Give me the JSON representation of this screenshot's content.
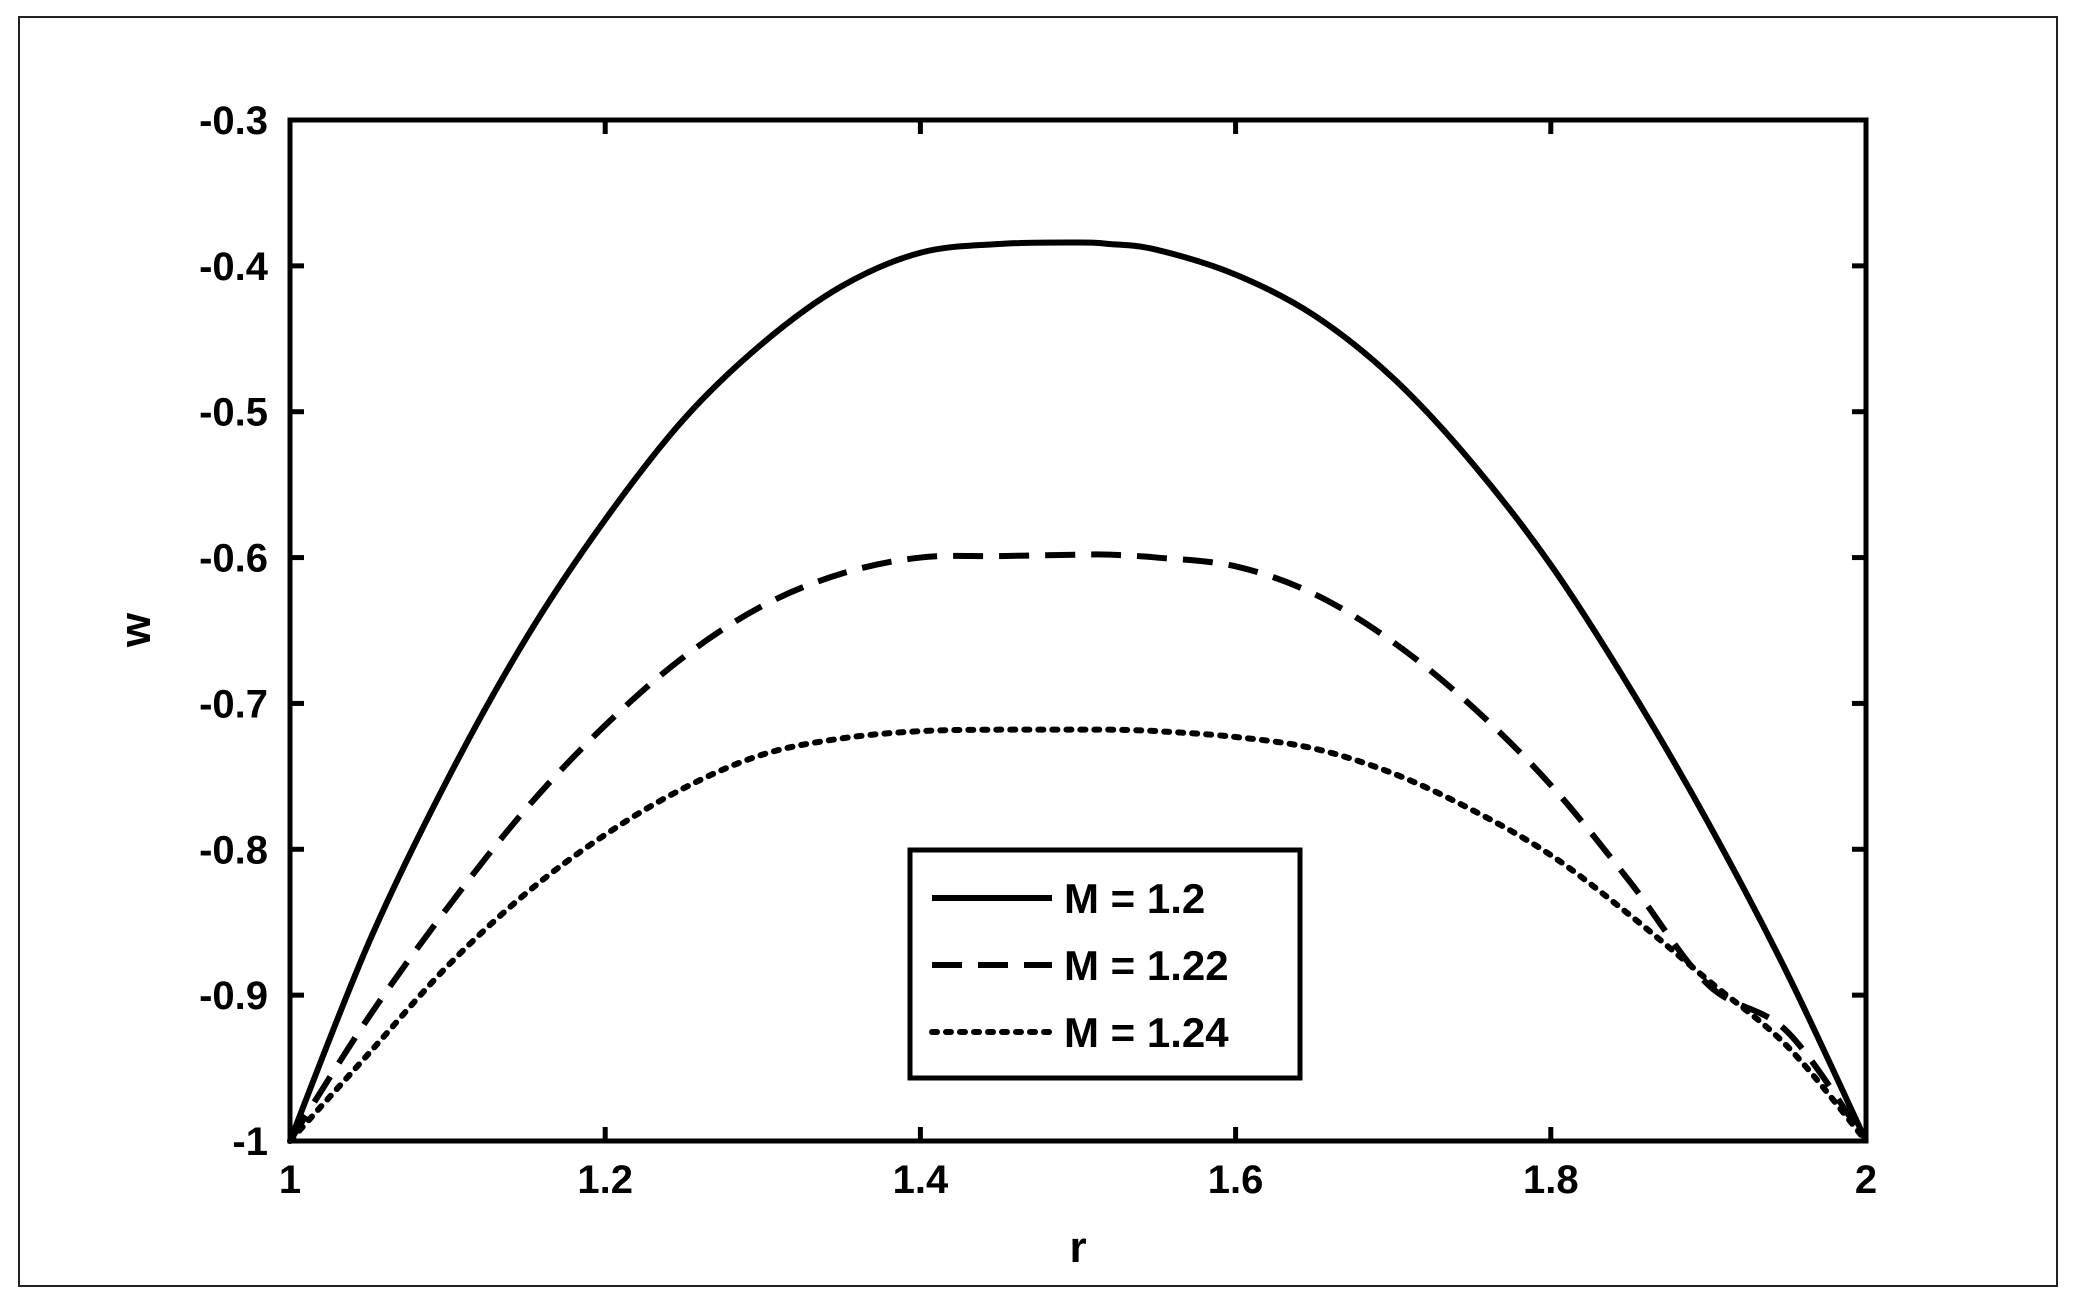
{
  "chart_data": {
    "type": "line",
    "title": "",
    "xlabel": "r",
    "ylabel": "w",
    "xlim": [
      1,
      2
    ],
    "ylim": [
      -1,
      -0.3
    ],
    "xticks": [
      1,
      1.2,
      1.4,
      1.6,
      1.8,
      2
    ],
    "xtick_labels": [
      "1",
      "1.2",
      "1.4",
      "1.6",
      "1.8",
      "2"
    ],
    "yticks": [
      -1,
      -0.9,
      -0.8,
      -0.7,
      -0.6,
      -0.5,
      -0.4,
      -0.3
    ],
    "ytick_labels": [
      "-1",
      "-0.9",
      "-0.8",
      "-0.7",
      "-0.6",
      "-0.5",
      "-0.4",
      "-0.3"
    ],
    "grid": false,
    "legend_position": "bottom-center",
    "x": [
      1.0,
      1.05,
      1.1,
      1.15,
      1.2,
      1.25,
      1.3,
      1.35,
      1.4,
      1.45,
      1.5,
      1.52,
      1.55,
      1.6,
      1.65,
      1.7,
      1.75,
      1.8,
      1.85,
      1.9,
      1.95,
      2.0
    ],
    "series": [
      {
        "name": "M = 1.2",
        "line_style": "solid",
        "values": [
          -1.0,
          -0.864,
          -0.752,
          -0.655,
          -0.574,
          -0.505,
          -0.453,
          -0.414,
          -0.391,
          -0.385,
          -0.384,
          -0.385,
          -0.389,
          -0.406,
          -0.434,
          -0.477,
          -0.535,
          -0.605,
          -0.689,
          -0.782,
          -0.885,
          -1.0
        ]
      },
      {
        "name": "M = 1.22",
        "line_style": "dashed",
        "values": [
          -1.0,
          -0.915,
          -0.84,
          -0.772,
          -0.715,
          -0.668,
          -0.633,
          -0.611,
          -0.6,
          -0.599,
          -0.598,
          -0.598,
          -0.6,
          -0.606,
          -0.625,
          -0.658,
          -0.702,
          -0.756,
          -0.822,
          -0.893,
          -0.925,
          -1.0
        ]
      },
      {
        "name": "M = 1.24",
        "line_style": "dotted",
        "values": [
          -1.0,
          -0.94,
          -0.88,
          -0.83,
          -0.79,
          -0.758,
          -0.735,
          -0.724,
          -0.719,
          -0.718,
          -0.718,
          -0.718,
          -0.719,
          -0.723,
          -0.731,
          -0.748,
          -0.773,
          -0.804,
          -0.845,
          -0.89,
          -0.935,
          -1.0
        ]
      }
    ]
  }
}
